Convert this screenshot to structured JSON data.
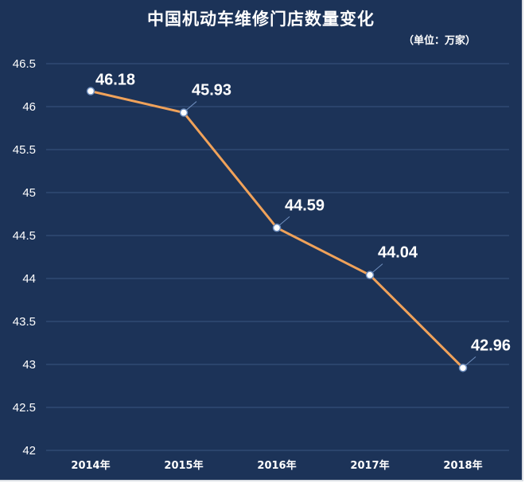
{
  "chart_data": {
    "type": "line",
    "title": "中国机动车维修门店数量变化",
    "unit_label": "（单位：万家）",
    "categories": [
      "2014年",
      "2015年",
      "2016年",
      "2017年",
      "2018年"
    ],
    "series": [
      {
        "values": [
          46.18,
          45.93,
          44.59,
          44.04,
          42.96
        ]
      }
    ],
    "data_labels": [
      "46.18",
      "45.93",
      "44.59",
      "44.04",
      "42.96"
    ],
    "ylim": [
      42,
      46.5
    ],
    "yticks": [
      "42",
      "42.5",
      "43",
      "43.5",
      "44",
      "44.5",
      "45",
      "45.5",
      "46",
      "46.5"
    ],
    "grid": true,
    "legend": "none"
  },
  "colors": {
    "background": "#1c3358",
    "line": "#f0a25a",
    "gridline": "#3a5580",
    "text": "#ffffff",
    "marker_fill": "#ffffff",
    "marker_stroke": "#6f8fbf"
  }
}
